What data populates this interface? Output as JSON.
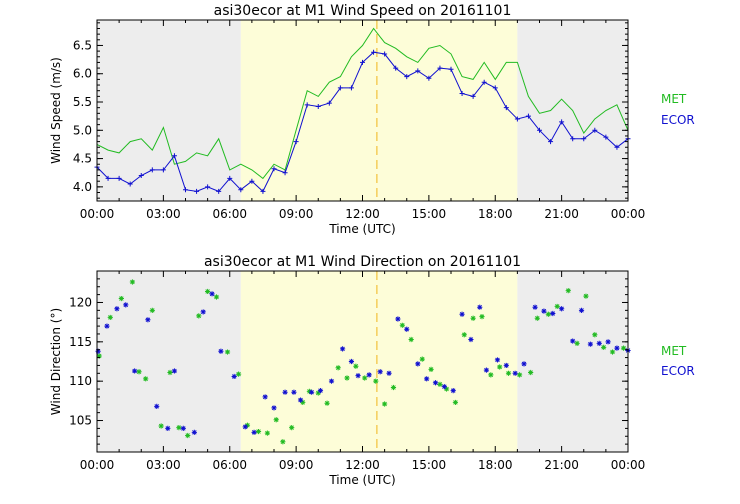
{
  "colors": {
    "met": "#22bb22",
    "ecor": "#1010d0",
    "night": "#ededed",
    "day": "#fdfdd8",
    "marker": "#f2c23a",
    "axis": "#000000"
  },
  "chart_data": [
    {
      "type": "line",
      "title": "asi30ecor at M1 Wind Speed on 20161101",
      "xlabel": "Time (UTC)",
      "ylabel": "Wind Speed (m/s)",
      "xlim": [
        0,
        24
      ],
      "ylim": [
        3.75,
        6.95
      ],
      "xticks": [
        "00:00",
        "03:00",
        "06:00",
        "09:00",
        "12:00",
        "15:00",
        "18:00",
        "21:00",
        "00:00"
      ],
      "yticks": [
        "4.0",
        "4.5",
        "5.0",
        "5.5",
        "6.0",
        "6.5"
      ],
      "day_span": [
        6.5,
        19.0
      ],
      "marker_time": 12.65,
      "legend": [
        "MET",
        "ECOR"
      ],
      "series": [
        {
          "name": "MET",
          "x": [
            0,
            0.5,
            1,
            1.5,
            2,
            2.5,
            3,
            3.5,
            4,
            4.5,
            5,
            5.5,
            6,
            6.5,
            7,
            7.5,
            8,
            8.5,
            9,
            9.5,
            10,
            10.5,
            11,
            11.5,
            12,
            12.5,
            13,
            13.5,
            14,
            14.5,
            15,
            15.5,
            16,
            16.5,
            17,
            17.5,
            18,
            18.5,
            19,
            19.5,
            20,
            20.5,
            21,
            21.5,
            22,
            22.5,
            23,
            23.5,
            24
          ],
          "values": [
            4.75,
            4.65,
            4.6,
            4.8,
            4.85,
            4.65,
            5.05,
            4.4,
            4.45,
            4.6,
            4.55,
            4.85,
            4.3,
            4.4,
            4.3,
            4.15,
            4.4,
            4.3,
            5.0,
            5.7,
            5.6,
            5.85,
            5.95,
            6.3,
            6.5,
            6.8,
            6.55,
            6.45,
            6.3,
            6.2,
            6.45,
            6.5,
            6.35,
            5.95,
            5.9,
            6.2,
            5.9,
            6.2,
            6.2,
            5.6,
            5.3,
            5.35,
            5.55,
            5.35,
            4.95,
            5.2,
            5.35,
            5.45,
            5.0
          ]
        },
        {
          "name": "ECOR",
          "x": [
            0,
            0.5,
            1,
            1.5,
            2,
            2.5,
            3,
            3.5,
            4,
            4.5,
            5,
            5.5,
            6,
            6.5,
            7,
            7.5,
            8,
            8.5,
            9,
            9.5,
            10,
            10.5,
            11,
            11.5,
            12,
            12.5,
            13,
            13.5,
            14,
            14.5,
            15,
            15.5,
            16,
            16.5,
            17,
            17.5,
            18,
            18.5,
            19,
            19.5,
            20,
            20.5,
            21,
            21.5,
            22,
            22.5,
            23,
            23.5,
            24
          ],
          "values": [
            4.35,
            4.15,
            4.15,
            4.05,
            4.2,
            4.3,
            4.3,
            4.55,
            3.95,
            3.92,
            4.0,
            3.92,
            4.15,
            3.95,
            4.1,
            3.92,
            4.32,
            4.25,
            4.8,
            5.45,
            5.42,
            5.48,
            5.75,
            5.75,
            6.2,
            6.38,
            6.35,
            6.1,
            5.95,
            6.05,
            5.92,
            6.1,
            6.08,
            5.65,
            5.6,
            5.85,
            5.75,
            5.4,
            5.2,
            5.25,
            5.0,
            4.8,
            5.15,
            4.85,
            4.85,
            5.0,
            4.88,
            4.7,
            4.85
          ]
        }
      ]
    },
    {
      "type": "scatter",
      "title": "asi30ecor at M1 Wind Direction on 20161101",
      "xlabel": "Time (UTC)",
      "ylabel": "Wind Direction (°)",
      "xlim": [
        0,
        24
      ],
      "ylim": [
        101,
        124
      ],
      "xticks": [
        "00:00",
        "03:00",
        "06:00",
        "09:00",
        "12:00",
        "15:00",
        "18:00",
        "21:00",
        "00:00"
      ],
      "yticks": [
        "105",
        "110",
        "115",
        "120"
      ],
      "day_span": [
        6.5,
        19.0
      ],
      "marker_time": 12.65,
      "legend": [
        "MET",
        "ECOR"
      ],
      "series": [
        {
          "name": "MET",
          "x": [
            0.1,
            0.6,
            1.1,
            1.6,
            1.9,
            2.2,
            2.5,
            2.9,
            3.3,
            3.7,
            4.1,
            4.6,
            5.0,
            5.4,
            5.9,
            6.4,
            6.8,
            7.3,
            7.7,
            8.1,
            8.4,
            8.8,
            9.3,
            9.6,
            10.0,
            10.4,
            10.9,
            11.3,
            11.7,
            12.1,
            12.6,
            13.0,
            13.4,
            13.8,
            14.2,
            14.7,
            15.1,
            15.5,
            15.8,
            16.2,
            16.6,
            17.0,
            17.4,
            17.8,
            18.2,
            18.6,
            19.1,
            19.6,
            19.9,
            20.4,
            20.8,
            21.3,
            21.7,
            22.1,
            22.5,
            22.9,
            23.3,
            23.8
          ],
          "values": [
            113.2,
            118.1,
            120.5,
            122.6,
            111.2,
            110.3,
            119.0,
            104.3,
            111.1,
            104.1,
            103.1,
            118.3,
            121.4,
            120.7,
            113.7,
            110.9,
            104.4,
            103.6,
            103.4,
            105.1,
            102.3,
            104.1,
            107.3,
            108.7,
            108.5,
            107.2,
            111.7,
            110.4,
            111.9,
            110.4,
            110.0,
            107.1,
            109.2,
            117.1,
            115.3,
            112.8,
            111.5,
            109.6,
            109.0,
            107.3,
            115.9,
            118.0,
            118.2,
            110.8,
            111.8,
            111.0,
            110.8,
            111.1,
            118.0,
            118.5,
            119.5,
            121.5,
            114.8,
            120.8,
            115.9,
            114.3,
            113.7,
            114.2
          ]
        },
        {
          "name": "ECOR",
          "x": [
            0.05,
            0.45,
            0.9,
            1.3,
            1.7,
            2.3,
            2.7,
            3.2,
            3.5,
            3.9,
            4.4,
            4.8,
            5.2,
            5.6,
            6.2,
            6.7,
            7.1,
            7.6,
            8.0,
            8.5,
            8.9,
            9.2,
            9.7,
            10.1,
            10.6,
            11.1,
            11.5,
            11.8,
            12.3,
            12.8,
            13.2,
            13.6,
            14.0,
            14.5,
            14.9,
            15.3,
            15.7,
            16.1,
            16.5,
            16.9,
            17.3,
            17.6,
            18.1,
            18.5,
            18.9,
            19.3,
            19.8,
            20.2,
            20.6,
            21.0,
            21.5,
            21.9,
            22.3,
            22.7,
            23.1,
            23.5,
            24.0
          ],
          "values": [
            113.8,
            117.0,
            119.2,
            119.7,
            111.3,
            117.8,
            106.8,
            104.0,
            111.3,
            104.0,
            103.5,
            118.8,
            121.1,
            113.8,
            110.6,
            104.2,
            103.5,
            108.0,
            106.6,
            108.6,
            108.6,
            107.6,
            108.6,
            108.8,
            110.0,
            114.1,
            112.5,
            110.7,
            110.8,
            111.2,
            111.0,
            117.9,
            116.6,
            112.2,
            110.3,
            109.8,
            109.3,
            108.8,
            118.5,
            115.3,
            119.4,
            111.4,
            112.7,
            112.0,
            111.0,
            112.2,
            119.4,
            118.9,
            118.6,
            119.2,
            115.1,
            119.0,
            114.7,
            114.8,
            115.0,
            114.2,
            113.9
          ]
        }
      ]
    }
  ]
}
